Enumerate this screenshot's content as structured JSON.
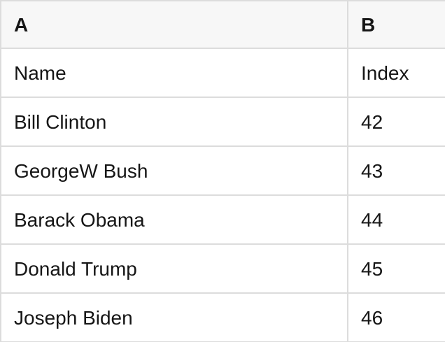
{
  "table": {
    "columns": [
      {
        "id": "A",
        "label": "A"
      },
      {
        "id": "B",
        "label": "B"
      }
    ],
    "rows": [
      {
        "A": "Name",
        "B": "Index"
      },
      {
        "A": "Bill Clinton",
        "B": "42"
      },
      {
        "A": "GeorgeW Bush",
        "B": "43"
      },
      {
        "A": "Barack Obama",
        "B": "44"
      },
      {
        "A": "Donald Trump",
        "B": "45"
      },
      {
        "A": "Joseph Biden",
        "B": "46"
      }
    ]
  },
  "colors": {
    "header_bg": "#f7f7f7",
    "cell_bg": "#ffffff",
    "border": "#dcdcdc",
    "text": "#161616"
  }
}
